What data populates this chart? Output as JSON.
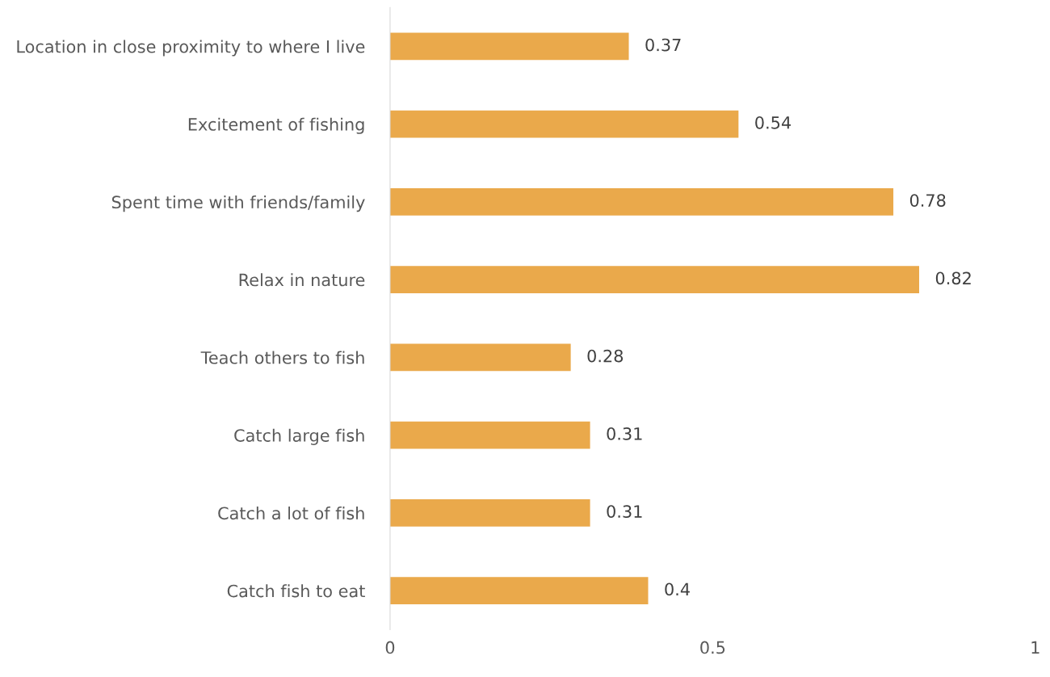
{
  "chart_data": {
    "type": "bar",
    "orientation": "horizontal",
    "categories": [
      "Location in close proximity to where I live",
      "Excitement of fishing",
      "Spent time with friends/family",
      "Relax in nature",
      "Teach others to fish",
      "Catch large fish",
      "Catch a lot of fish",
      "Catch fish to eat"
    ],
    "values": [
      0.37,
      0.54,
      0.78,
      0.82,
      0.28,
      0.31,
      0.31,
      0.4
    ],
    "color": "#eaa94b",
    "xlim": [
      0,
      1
    ],
    "xticks": [
      0,
      0.5,
      1
    ],
    "data_labels": true,
    "grid": false
  }
}
